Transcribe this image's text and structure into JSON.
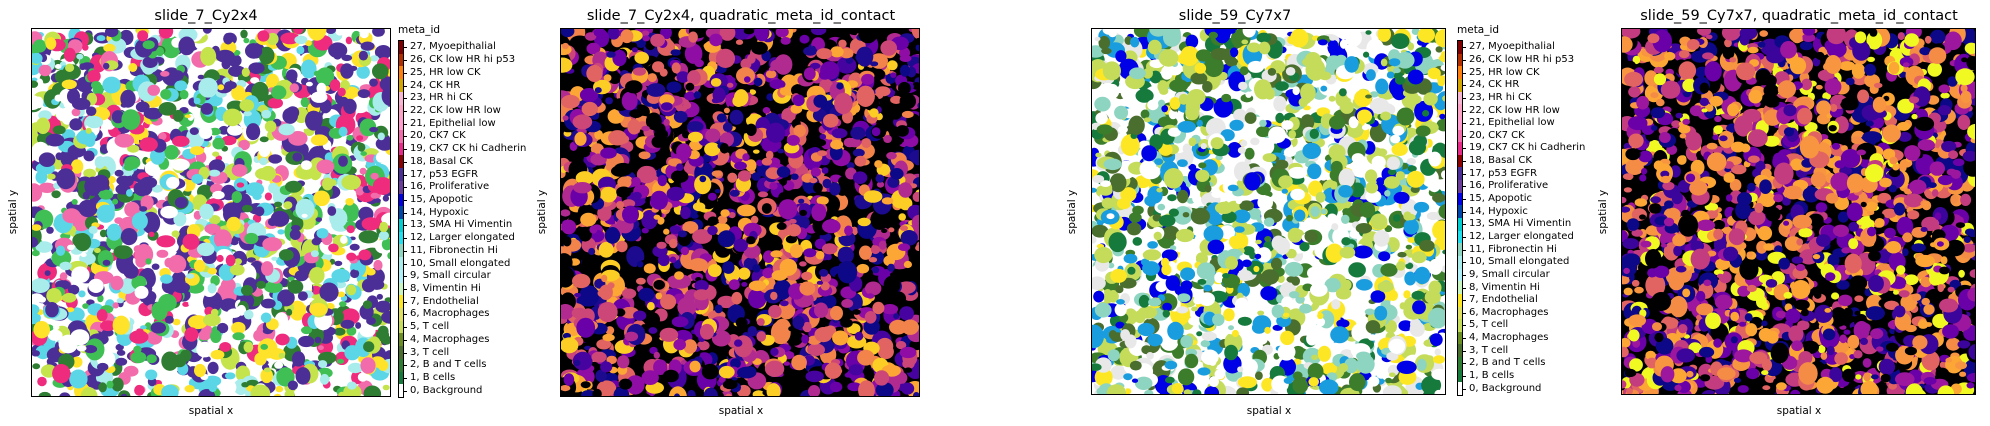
{
  "panels": [
    {
      "title": "slide_7_Cy2x4",
      "xlabel": "spatial x",
      "ylabel": "spatial y",
      "kind": "categorical",
      "palette": [
        "#4b2f96",
        "#4b2f96",
        "#4b2f96",
        "#ffffff",
        "#f26bab",
        "#a8ecec",
        "#3fbf54",
        "#2e7d32",
        "#ffe32a",
        "#c5e34a",
        "#5bd6e6",
        "#ef2b7d"
      ],
      "seed": 7
    },
    {
      "title": "slide_7_Cy2x4, quadratic_meta_id_contact",
      "xlabel": "spatial x",
      "ylabel": "spatial y",
      "kind": "plasma",
      "palette": [
        "#000000",
        "#000000",
        "#0d0887",
        "#1c0a8f",
        "#46039f",
        "#6a00a8",
        "#8f0da4",
        "#b12a90",
        "#cc4778",
        "#e16462",
        "#f2844b",
        "#fca636",
        "#fcce25"
      ],
      "seed": 11
    },
    {
      "title": "slide_59_Cy7x7",
      "xlabel": "spatial x",
      "ylabel": "spatial y",
      "kind": "categorical",
      "palette": [
        "#c5dc5a",
        "#c5dc5a",
        "#ffffff",
        "#ffffff",
        "#8dd4c1",
        "#4a6e2e",
        "#3b7d2b",
        "#177a3d",
        "#e8e8e8",
        "#fde725",
        "#1a9dde",
        "#0000e6"
      ],
      "seed": 59
    },
    {
      "title": "slide_59_Cy7x7, quadratic_meta_id_contact",
      "xlabel": "spatial x",
      "ylabel": "spatial y",
      "kind": "plasma",
      "palette": [
        "#000000",
        "#0d0887",
        "#3b049a",
        "#6a00a8",
        "#9c179e",
        "#c33c80",
        "#e16462",
        "#f58c46",
        "#f89540",
        "#fca636",
        "#f0f921"
      ],
      "seed": 97
    }
  ],
  "legends": [
    {
      "title": "meta_id"
    },
    {
      "title": "meta_id"
    }
  ],
  "legend_items": [
    {
      "label": "27, Myoepithalial",
      "color": "#7f0000"
    },
    {
      "label": "26, CK low HR hi p53",
      "color": "#b22d00"
    },
    {
      "label": "25, HR low CK",
      "color": "#ff7f0e"
    },
    {
      "label": "24, CK HR",
      "color": "#d4a600"
    },
    {
      "label": "23, HR hi CK",
      "color": "#f7b6d2"
    },
    {
      "label": "22, CK low HR low",
      "color": "#fca4c6"
    },
    {
      "label": "21, Epithelial low",
      "color": "#ff9ecf"
    },
    {
      "label": "20, CK7 CK",
      "color": "#f26bab"
    },
    {
      "label": "19, CK7 CK hi Cadherin",
      "color": "#e7298a"
    },
    {
      "label": "18, Basal CK",
      "color": "#8b0000"
    },
    {
      "label": "17, p53 EGFR",
      "color": "#4b2f96"
    },
    {
      "label": "16, Proliferative",
      "color": "#6a3d9a"
    },
    {
      "label": "15, Apopotic",
      "color": "#0000e6"
    },
    {
      "label": "14, Hypoxic",
      "color": "#0047ab"
    },
    {
      "label": "13, SMA Hi Vimentin",
      "color": "#00ced1"
    },
    {
      "label": "12, Larger elongated",
      "color": "#20e0f0"
    },
    {
      "label": "11, Fibronectin Hi",
      "color": "#8dd4c1"
    },
    {
      "label": "10, Small elongated",
      "color": "#a8ecec"
    },
    {
      "label": "9, Small circular",
      "color": "#b0f0f8"
    },
    {
      "label": "8, Vimentin Hi",
      "color": "#c8f5c0"
    },
    {
      "label": "7, Endothelial",
      "color": "#fde725"
    },
    {
      "label": "6, Macrophages",
      "color": "#e0e060"
    },
    {
      "label": "5, T cell",
      "color": "#c5dc5a"
    },
    {
      "label": "4, Macrophages",
      "color": "#6b8e23"
    },
    {
      "label": "3, T cell",
      "color": "#4a6e2e"
    },
    {
      "label": "2, B and T cells",
      "color": "#2e7d32"
    },
    {
      "label": "1, B cells",
      "color": "#177a3d"
    },
    {
      "label": "0, Background",
      "color": "#ffffff"
    }
  ]
}
